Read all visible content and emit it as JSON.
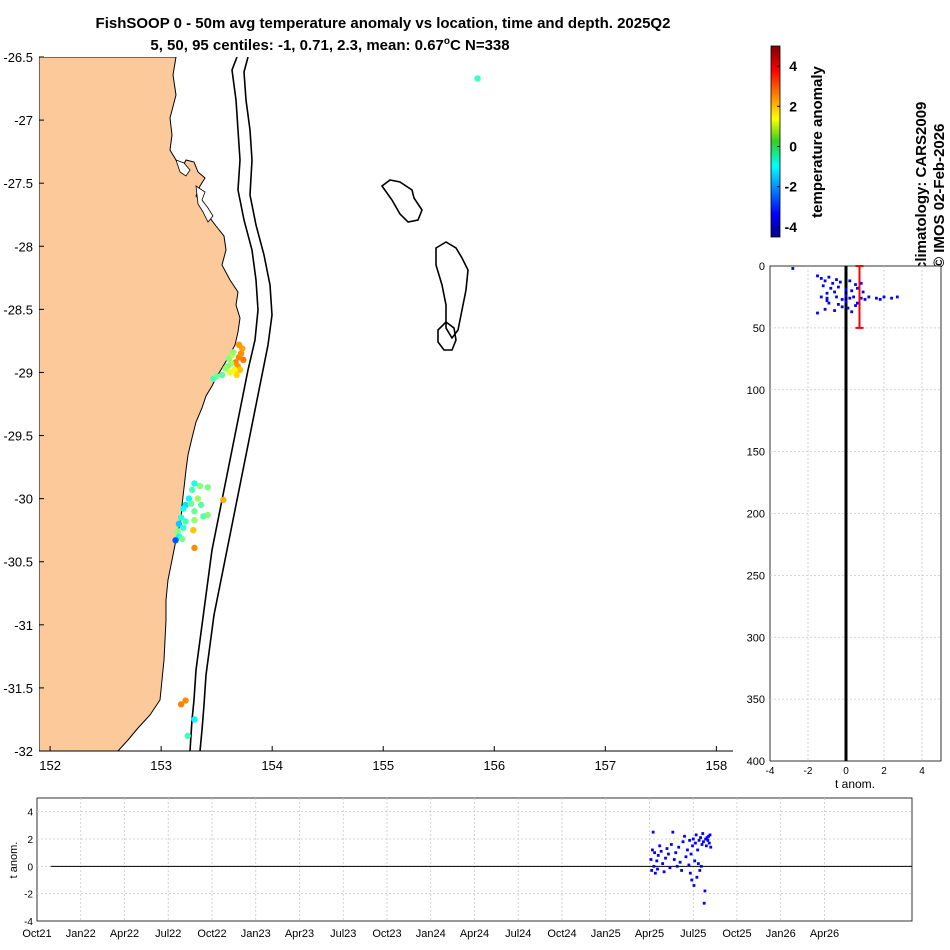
{
  "title_line1": "FishSOOP 0 - 50m avg temperature anomaly vs location, time and depth. 2025Q2",
  "title_line2": "5, 50, 95 centiles: -1, 0.71, 2.3, mean: 0.67",
  "title_deg": "o",
  "title_suffix": "C N=338",
  "side_text": [
    "climatology: CARS2009",
    "© IMOS 02-Feb-2026"
  ],
  "colors": {
    "land": "#FBC99A",
    "points": "#0000FF",
    "errorbar": "#FF0000"
  },
  "chart_data": [
    {
      "name": "map",
      "type": "scatter",
      "xlim": [
        151.9,
        158.15
      ],
      "ylim": [
        -32,
        -26.5
      ],
      "xticks": [
        152,
        153,
        154,
        155,
        156,
        157,
        158
      ],
      "yticks": [
        -26.5,
        -27,
        -27.5,
        -28,
        -28.5,
        -29,
        -29.5,
        -30,
        -30.5,
        -31,
        -31.5,
        -32
      ],
      "points": [
        [
          155.85,
          -26.67,
          -0.4
        ],
        [
          153.67,
          -28.92,
          2.6
        ],
        [
          153.7,
          -28.88,
          2.6
        ],
        [
          153.72,
          -28.85,
          2.5
        ],
        [
          153.73,
          -28.81,
          2.3
        ],
        [
          153.69,
          -28.95,
          2.4
        ],
        [
          153.71,
          -28.98,
          2.0
        ],
        [
          153.66,
          -28.98,
          1.5
        ],
        [
          153.63,
          -28.93,
          0.6
        ],
        [
          153.61,
          -28.89,
          0.3
        ],
        [
          153.6,
          -28.95,
          0.2
        ],
        [
          153.64,
          -28.86,
          0.8
        ],
        [
          153.65,
          -28.84,
          0.4
        ],
        [
          153.55,
          -29.02,
          -0.1
        ],
        [
          153.5,
          -29.03,
          0.1
        ],
        [
          153.47,
          -29.05,
          -0.2
        ],
        [
          153.68,
          -29.02,
          1.8
        ],
        [
          153.62,
          -29.0,
          1.2
        ],
        [
          153.58,
          -28.97,
          0.5
        ],
        [
          153.7,
          -28.78,
          2.4
        ],
        [
          153.74,
          -28.9,
          2.7
        ],
        [
          153.3,
          -29.88,
          -0.7
        ],
        [
          153.28,
          -29.93,
          -0.2
        ],
        [
          153.35,
          -29.9,
          0.3
        ],
        [
          153.42,
          -29.91,
          0.2
        ],
        [
          153.25,
          -30.0,
          -1.0
        ],
        [
          153.22,
          -30.05,
          -1.2
        ],
        [
          153.2,
          -30.08,
          -0.8
        ],
        [
          153.27,
          -30.04,
          0.1
        ],
        [
          153.3,
          -30.1,
          0.0
        ],
        [
          153.36,
          -30.05,
          -0.1
        ],
        [
          153.42,
          -30.13,
          0.3
        ],
        [
          153.18,
          -30.15,
          -0.6
        ],
        [
          153.22,
          -30.18,
          -0.3
        ],
        [
          153.3,
          -30.17,
          0.4
        ],
        [
          153.16,
          -30.2,
          -1.4
        ],
        [
          153.2,
          -30.23,
          -0.5
        ],
        [
          153.15,
          -30.26,
          0.3
        ],
        [
          153.16,
          -30.3,
          -0.9
        ],
        [
          153.19,
          -30.32,
          0.2
        ],
        [
          153.13,
          -30.33,
          -2.5
        ],
        [
          153.29,
          -30.25,
          2.0
        ],
        [
          153.3,
          -30.39,
          2.5
        ],
        [
          153.56,
          -30.01,
          2.2
        ],
        [
          153.38,
          -30.14,
          -0.1
        ],
        [
          153.33,
          -30.0,
          0.5
        ],
        [
          153.22,
          -31.6,
          2.5
        ],
        [
          153.18,
          -31.63,
          2.6
        ],
        [
          153.3,
          -31.75,
          -1.0
        ],
        [
          153.24,
          -31.88,
          -0.3
        ]
      ]
    },
    {
      "name": "depth_profile",
      "type": "scatter",
      "xlabel": "t anom.",
      "xlim": [
        -4,
        5
      ],
      "ylim": [
        0,
        400
      ],
      "xticks": [
        -4,
        -2,
        0,
        2,
        4
      ],
      "yticks": [
        0,
        50,
        100,
        150,
        200,
        250,
        300,
        350,
        400
      ],
      "mean_line_x": 0,
      "errorbar": {
        "x": 0.71,
        "ymin": 0,
        "ymax": 50
      },
      "points": [
        [
          -2.8,
          2
        ],
        [
          -1.5,
          8
        ],
        [
          -1.3,
          10
        ],
        [
          -1.1,
          12
        ],
        [
          -0.9,
          9
        ],
        [
          -0.7,
          14
        ],
        [
          -0.5,
          11
        ],
        [
          -0.3,
          13
        ],
        [
          0.2,
          12
        ],
        [
          0.5,
          15
        ],
        [
          0.8,
          14
        ],
        [
          -1.2,
          16
        ],
        [
          -0.8,
          18
        ],
        [
          -0.4,
          17
        ],
        [
          0.0,
          19
        ],
        [
          0.3,
          20
        ],
        [
          0.6,
          18
        ],
        [
          -0.6,
          21
        ],
        [
          -1.0,
          22
        ],
        [
          0.9,
          21
        ],
        [
          -1.3,
          25
        ],
        [
          -1.0,
          26
        ],
        [
          -0.5,
          25
        ],
        [
          0.0,
          24
        ],
        [
          0.4,
          25
        ],
        [
          0.8,
          26
        ],
        [
          1.2,
          25
        ],
        [
          1.6,
          26
        ],
        [
          2.0,
          25
        ],
        [
          2.4,
          26
        ],
        [
          2.7,
          25
        ],
        [
          1.8,
          27
        ],
        [
          1.0,
          27
        ],
        [
          0.2,
          26
        ],
        [
          -0.2,
          27
        ],
        [
          -0.9,
          30
        ],
        [
          -0.4,
          31
        ],
        [
          0.0,
          29
        ],
        [
          0.5,
          32
        ],
        [
          -1.1,
          35
        ],
        [
          -0.6,
          36
        ],
        [
          0.1,
          34
        ],
        [
          -1.5,
          38
        ],
        [
          -1.0,
          28
        ],
        [
          0.6,
          30
        ],
        [
          -0.2,
          33
        ],
        [
          0.3,
          37
        ]
      ]
    },
    {
      "name": "time_series",
      "type": "scatter",
      "ylabel": "t anom.",
      "xlim": [
        0,
        60
      ],
      "ylim": [
        -4,
        5
      ],
      "xticks": [
        0,
        3,
        6,
        9,
        12,
        15,
        18,
        21,
        24,
        27,
        30,
        33,
        36,
        39,
        42,
        45,
        48,
        51,
        54,
        57,
        60
      ],
      "xtick_labels": [
        "Oct21",
        "Jan22",
        "Apr22",
        "Jul22",
        "Oct22",
        "Jan23",
        "Apr23",
        "Jul23",
        "Oct23",
        "Jan24",
        "Apr24",
        "Jul24",
        "Oct24",
        "Jan25",
        "Apr25",
        "Jul25",
        "Oct25",
        "Jan26",
        "Apr26",
        "",
        ""
      ],
      "yticks": [
        -4,
        -2,
        0,
        2,
        4
      ],
      "zero_line": 0,
      "points": [
        [
          42.1,
          0.5
        ],
        [
          42.15,
          -0.3
        ],
        [
          42.2,
          1.2
        ],
        [
          42.25,
          2.5
        ],
        [
          42.3,
          0.0
        ],
        [
          42.35,
          1.0
        ],
        [
          42.4,
          -0.5
        ],
        [
          42.5,
          0.4
        ],
        [
          42.55,
          -0.2
        ],
        [
          42.6,
          0.8
        ],
        [
          42.7,
          1.5
        ],
        [
          42.8,
          1.1
        ],
        [
          42.9,
          0.2
        ],
        [
          43.0,
          -0.4
        ],
        [
          43.1,
          0.6
        ],
        [
          43.2,
          1.3
        ],
        [
          43.3,
          0.9
        ],
        [
          43.4,
          -0.1
        ],
        [
          43.5,
          1.6
        ],
        [
          43.6,
          2.5
        ],
        [
          43.7,
          0.5
        ],
        [
          43.8,
          1.0
        ],
        [
          43.9,
          0.0
        ],
        [
          44.0,
          1.4
        ],
        [
          44.1,
          0.3
        ],
        [
          44.2,
          -0.3
        ],
        [
          44.3,
          1.8
        ],
        [
          44.4,
          2.2
        ],
        [
          44.5,
          0.7
        ],
        [
          44.6,
          1.2
        ],
        [
          44.7,
          0.1
        ],
        [
          44.75,
          1.9
        ],
        [
          44.8,
          -0.5
        ],
        [
          44.85,
          0.9
        ],
        [
          44.9,
          -1.0
        ],
        [
          44.95,
          1.5
        ],
        [
          45.0,
          2.0
        ],
        [
          45.05,
          -1.4
        ],
        [
          45.1,
          0.4
        ],
        [
          45.15,
          1.7
        ],
        [
          45.2,
          2.3
        ],
        [
          45.25,
          -0.8
        ],
        [
          45.3,
          1.2
        ],
        [
          45.35,
          0.2
        ],
        [
          45.4,
          1.9
        ],
        [
          45.45,
          -0.3
        ],
        [
          45.5,
          2.1
        ],
        [
          45.55,
          0.0
        ],
        [
          45.6,
          1.6
        ],
        [
          45.65,
          2.4
        ],
        [
          45.7,
          1.8
        ],
        [
          45.75,
          -2.7
        ],
        [
          45.8,
          -1.8
        ],
        [
          45.85,
          2.0
        ],
        [
          45.9,
          1.5
        ],
        [
          45.95,
          2.1
        ],
        [
          46.0,
          1.9
        ],
        [
          46.05,
          2.2
        ],
        [
          46.1,
          1.7
        ],
        [
          46.15,
          2.3
        ],
        [
          46.2,
          1.4
        ]
      ]
    },
    {
      "name": "colorbar",
      "type": "heatmap",
      "label": "temperature anomaly",
      "range": [
        -4.5,
        5
      ],
      "ticks": [
        -4,
        -2,
        0,
        2,
        4
      ],
      "colormap": "jet"
    }
  ]
}
